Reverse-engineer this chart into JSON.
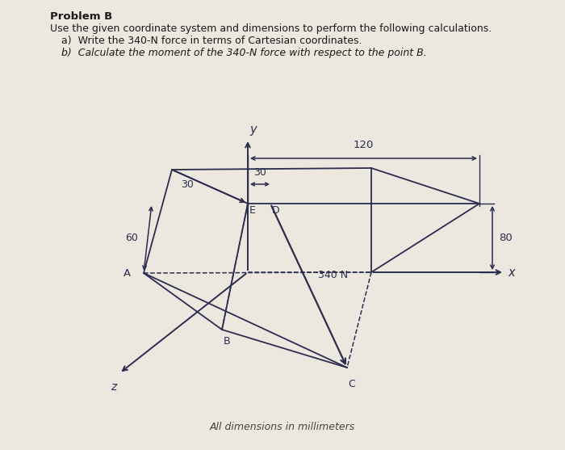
{
  "title_bold": "Problem B",
  "subtitle": "Use the given coordinate system and dimensions to perform the following calculations.",
  "item_a": "a)  Write the 340-N force in terms of Cartesian coordinates.",
  "item_b": "b)  Calculate the moment of the 340-N force with respect to the point B.",
  "footer": "All dimensions in millimeters",
  "bg_color": "#ede8df",
  "line_color": "#2a2d4e",
  "dim_30a": "30",
  "dim_30b": "30",
  "dim_120": "120",
  "dim_60": "60",
  "dim_80": "80",
  "force_label": "340 N",
  "label_E": "E",
  "label_D": "D",
  "label_A": "A",
  "label_B": "B",
  "label_C": "C",
  "label_x": "x",
  "label_y": "y",
  "label_z": "z",
  "text_color": "#1a1a1a"
}
